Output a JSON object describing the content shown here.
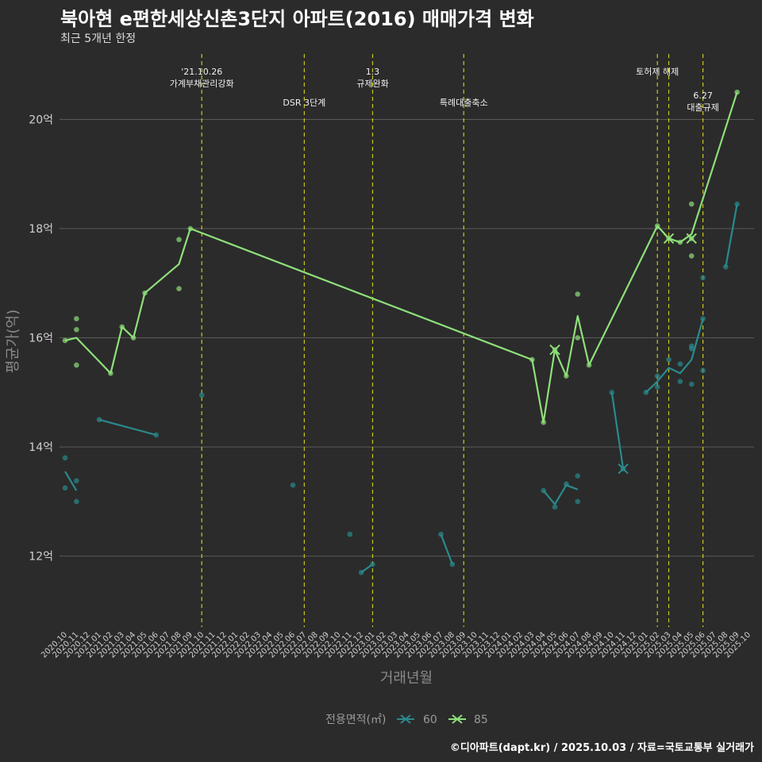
{
  "header": {
    "title": "북아현 e편한세상신촌3단지 아파트(2016) 매매가격 변화",
    "subtitle": "최근 5개년 한정"
  },
  "caption": "©디아파트(dapt.kr) / 2025.10.03 / 자료=국토교통부 실거래가",
  "colors": {
    "background": "#2b2b2b",
    "grid": "#5a5a5a",
    "event_line": "#c8c820",
    "series_60": "#2a8a8c",
    "series_85": "#8ee07a"
  },
  "chart_data": {
    "type": "line",
    "xlabel": "거래년월",
    "ylabel": "평균가(억)",
    "ylim": [
      10.7,
      21.2
    ],
    "y_ticks": [
      12,
      14,
      16,
      18,
      20
    ],
    "y_tick_labels": [
      "12억",
      "14억",
      "16억",
      "18억",
      "20억"
    ],
    "x_tick_labels": [
      "2020.10",
      "2020.11",
      "2020.12",
      "2021.01",
      "2021.02",
      "2021.03",
      "2021.04",
      "2021.05",
      "2021.06",
      "2021.07",
      "2021.08",
      "2021.09",
      "2021.10",
      "2021.11",
      "2021.12",
      "2022.01",
      "2022.02",
      "2022.03",
      "2022.04",
      "2022.05",
      "2022.06",
      "2022.07",
      "2022.08",
      "2022.09",
      "2022.10",
      "2022.11",
      "2022.12",
      "2023.01",
      "2023.02",
      "2023.03",
      "2023.04",
      "2023.05",
      "2023.06",
      "2023.07",
      "2023.08",
      "2023.09",
      "2023.10",
      "2023.11",
      "2023.12",
      "2024.01",
      "2024.02",
      "2024.03",
      "2024.04",
      "2024.05",
      "2024.06",
      "2024.07",
      "2024.08",
      "2024.09",
      "2024.10",
      "2024.11",
      "2024.12",
      "2025.01",
      "2025.02",
      "2025.03",
      "2025.04",
      "2025.05",
      "2025.06",
      "2025.07",
      "2025.08",
      "2025.09",
      "2025.10"
    ],
    "x_tick_texts": [
      "2020.10",
      "2020.11",
      "2020.12",
      "2021.01",
      "2021.02",
      "2021.03",
      "2021.04",
      "2021.05",
      "2021.06",
      "2021.07",
      "2021.08",
      "2021.09",
      "2021.10",
      "2021.11",
      "2021.12",
      "2022.01",
      "2022.02",
      "2022.03",
      "2022.04",
      "2022.05",
      "2022.06",
      "2022.07",
      "2022.08",
      "2022.09",
      "2022.10",
      "2022.11",
      "2022.12",
      "2023.01",
      "2023.02",
      "2023.03",
      "2023.04",
      "2023.05",
      "2023.06",
      "2023.07",
      "2023.08",
      "2023.09",
      "2023.10",
      "2023.11",
      "2023.12",
      "2024.01",
      "2024.02",
      "2024.03",
      "2024.04",
      "2024.05",
      "2024.06",
      "2024.07",
      "2024.08",
      "2024.09",
      "2024.10",
      "2024.11",
      "2024.12",
      "2025.01",
      "2025.02",
      "2025.03",
      "2025.04",
      "2025.05",
      "2025.06",
      "2025.07",
      "2025.08",
      "2025.09",
      "2025.10"
    ],
    "legend_title": "전용면적(㎡)",
    "legend_placement": "bottom",
    "events": [
      {
        "date": "2021.10",
        "labels": [
          "'21.10.26",
          "가계부채관리강화"
        ],
        "row": 0
      },
      {
        "date": "2022.07",
        "labels": [
          "DSR 3단계"
        ],
        "row": 1
      },
      {
        "date": "2023.01",
        "labels": [
          "1.3",
          "규제완화"
        ],
        "row": 0
      },
      {
        "date": "2023.09",
        "labels": [
          "특례대출축소"
        ],
        "row": 1
      },
      {
        "date": "2025.02",
        "labels": [
          "토허제 해제"
        ],
        "row": 0
      },
      {
        "date": "2025.03",
        "labels": [],
        "row": 0
      },
      {
        "date": "2025.06",
        "labels": [
          "6.27",
          "대출규제"
        ],
        "row": 2
      }
    ],
    "series": [
      {
        "name": "60",
        "color": "#2a8a8c",
        "line_segments": [
          [
            [
              "2020.10",
              13.55
            ],
            [
              "2020.11",
              13.2
            ]
          ],
          [
            [
              "2021.01",
              14.5
            ],
            [
              "2021.06",
              14.22
            ]
          ],
          [
            [
              "2022.12",
              11.7
            ],
            [
              "2023.01",
              11.85
            ]
          ],
          [
            [
              "2023.07",
              12.4
            ],
            [
              "2023.08",
              11.85
            ]
          ],
          [
            [
              "2024.04",
              13.2
            ],
            [
              "2024.05",
              12.95
            ],
            [
              "2024.06",
              13.3
            ],
            [
              "2024.07",
              13.22
            ]
          ],
          [
            [
              "2024.10",
              15.0
            ],
            [
              "2024.11",
              13.6
            ]
          ],
          [
            [
              "2025.01",
              15.0
            ],
            [
              "2025.02",
              15.2
            ],
            [
              "2025.03",
              15.45
            ],
            [
              "2025.04",
              15.35
            ],
            [
              "2025.05",
              15.6
            ],
            [
              "2025.06",
              16.35
            ]
          ],
          [
            [
              "2025.08",
              17.3
            ],
            [
              "2025.09",
              18.45
            ]
          ]
        ],
        "points": [
          [
            "2020.10",
            13.8
          ],
          [
            "2020.10",
            13.25
          ],
          [
            "2020.11",
            13.38
          ],
          [
            "2020.11",
            13.0
          ],
          [
            "2021.01",
            14.5
          ],
          [
            "2021.06",
            14.22
          ],
          [
            "2021.10",
            14.95
          ],
          [
            "2022.06",
            13.3
          ],
          [
            "2022.11",
            12.4
          ],
          [
            "2022.12",
            11.7
          ],
          [
            "2023.01",
            11.85
          ],
          [
            "2023.07",
            12.4
          ],
          [
            "2023.08",
            11.85
          ],
          [
            "2024.04",
            13.2
          ],
          [
            "2024.05",
            12.9
          ],
          [
            "2024.06",
            13.32
          ],
          [
            "2024.07",
            13.47
          ],
          [
            "2024.07",
            13.0
          ],
          [
            "2024.10",
            15.0
          ],
          [
            "2024.11",
            13.6
          ],
          [
            "2025.01",
            15.0
          ],
          [
            "2025.02",
            15.3
          ],
          [
            "2025.02",
            15.1
          ],
          [
            "2025.03",
            15.6
          ],
          [
            "2025.04",
            15.52
          ],
          [
            "2025.04",
            15.2
          ],
          [
            "2025.05",
            15.85
          ],
          [
            "2025.05",
            15.8
          ],
          [
            "2025.05",
            15.15
          ],
          [
            "2025.06",
            17.1
          ],
          [
            "2025.06",
            16.35
          ],
          [
            "2025.06",
            15.4
          ],
          [
            "2025.08",
            17.3
          ],
          [
            "2025.09",
            18.45
          ]
        ],
        "cross_markers": [
          [
            "2024.11",
            13.6
          ]
        ]
      },
      {
        "name": "85",
        "color": "#8ee07a",
        "line_segments": [
          [
            [
              "2020.10",
              15.95
            ],
            [
              "2020.11",
              16.0
            ],
            [
              "2021.02",
              15.35
            ],
            [
              "2021.03",
              16.2
            ],
            [
              "2021.04",
              16.0
            ],
            [
              "2021.05",
              16.82
            ],
            [
              "2021.08",
              17.35
            ],
            [
              "2021.09",
              18.0
            ],
            [
              "2024.03",
              15.6
            ],
            [
              "2024.04",
              14.45
            ],
            [
              "2024.05",
              15.78
            ],
            [
              "2024.06",
              15.3
            ],
            [
              "2024.07",
              16.4
            ],
            [
              "2024.08",
              15.5
            ],
            [
              "2025.02",
              18.05
            ],
            [
              "2025.03",
              17.82
            ],
            [
              "2025.04",
              17.75
            ],
            [
              "2025.05",
              17.9
            ],
            [
              "2025.09",
              20.5
            ]
          ]
        ],
        "points": [
          [
            "2020.10",
            15.95
          ],
          [
            "2020.11",
            16.35
          ],
          [
            "2020.11",
            16.15
          ],
          [
            "2020.11",
            15.5
          ],
          [
            "2021.02",
            15.35
          ],
          [
            "2021.03",
            16.2
          ],
          [
            "2021.04",
            16.0
          ],
          [
            "2021.05",
            16.82
          ],
          [
            "2021.08",
            17.8
          ],
          [
            "2021.08",
            16.9
          ],
          [
            "2021.09",
            18.0
          ],
          [
            "2024.03",
            15.6
          ],
          [
            "2024.04",
            14.45
          ],
          [
            "2024.05",
            15.78
          ],
          [
            "2024.06",
            15.3
          ],
          [
            "2024.07",
            16.8
          ],
          [
            "2024.07",
            16.0
          ],
          [
            "2024.08",
            15.5
          ],
          [
            "2025.02",
            18.05
          ],
          [
            "2025.03",
            17.82
          ],
          [
            "2025.04",
            17.75
          ],
          [
            "2025.05",
            18.45
          ],
          [
            "2025.05",
            17.5
          ],
          [
            "2025.05",
            17.82
          ],
          [
            "2025.09",
            20.5
          ]
        ],
        "cross_markers": [
          [
            "2024.05",
            15.78
          ],
          [
            "2025.03",
            17.82
          ],
          [
            "2025.05",
            17.82
          ]
        ]
      }
    ]
  }
}
